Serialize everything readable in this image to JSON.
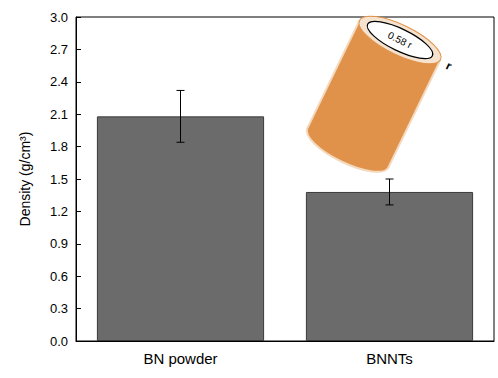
{
  "chart_data": {
    "type": "bar",
    "y_label": "Density (g/cm³)",
    "categories": [
      "BN powder",
      "BNNTs"
    ],
    "values": [
      2.08,
      1.38
    ],
    "errors": [
      0.24,
      0.12
    ],
    "color": "#6b6b6b",
    "ylim": [
      0,
      3.0
    ],
    "yticks": [
      {
        "value": 0,
        "label": "0.0"
      },
      0.3,
      0.6,
      0.9,
      1.2,
      1.5,
      1.8,
      2.1,
      2.4,
      2.7,
      {
        "value": 3.0,
        "label": "3.0"
      }
    ],
    "grid": false,
    "annotations": [
      "0.58 r",
      "r"
    ]
  }
}
